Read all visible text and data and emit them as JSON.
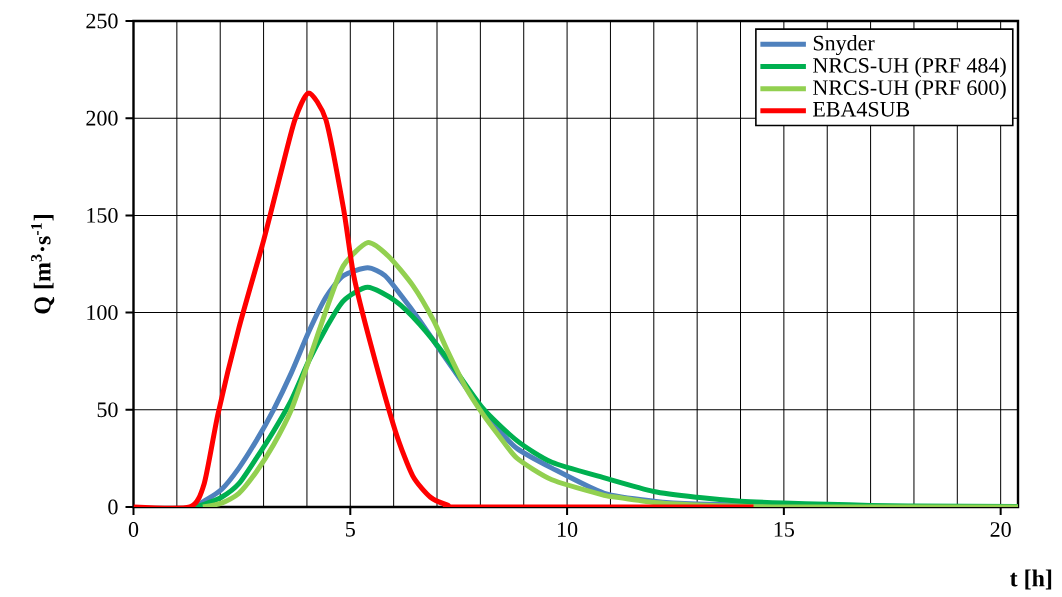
{
  "chart_data": {
    "type": "line",
    "xlabel": "t [h]",
    "ylabel": "Q [m$^{3}$·s$^{-1}$]",
    "xlim": [
      0,
      20.4
    ],
    "ylim": [
      0,
      250
    ],
    "xticks": [
      0,
      {
        "value": 1,
        "label": null
      },
      {
        "value": 2,
        "label": null
      },
      {
        "value": 3,
        "label": null
      },
      {
        "value": 4,
        "label": null
      },
      5,
      {
        "value": 6,
        "label": null
      },
      {
        "value": 7,
        "label": null
      },
      {
        "value": 8,
        "label": null
      },
      {
        "value": 9,
        "label": null
      },
      10,
      {
        "value": 11,
        "label": null
      },
      {
        "value": 12,
        "label": null
      },
      {
        "value": 13,
        "label": null
      },
      {
        "value": 14,
        "label": null
      },
      15,
      {
        "value": 16,
        "label": null
      },
      {
        "value": 17,
        "label": null
      },
      {
        "value": 18,
        "label": null
      },
      {
        "value": 19,
        "label": null
      },
      20
    ],
    "yticks": [
      0,
      50,
      100,
      150,
      200,
      250
    ],
    "grid": true,
    "legend": "top right",
    "marker": "none",
    "line_style": "solid",
    "series": [
      {
        "name": "Snyder",
        "color": "#4f81bd",
        "x": [
          1.4,
          1.63,
          2.03,
          2.43,
          2.83,
          3.23,
          3.64,
          4.04,
          4.44,
          4.84,
          5.4,
          5.8,
          6.2,
          6.6,
          7.09,
          7.65,
          8.05,
          8.45,
          8.85,
          9.65,
          10.86,
          12.0,
          13.0,
          15.0
        ],
        "values": [
          0,
          3,
          9,
          20,
          34,
          50,
          69,
          90,
          108,
          119,
          123,
          119,
          108,
          96,
          80,
          62,
          50,
          39,
          30,
          20,
          7,
          3,
          1.5,
          0.5
        ]
      },
      {
        "name": "NRCS-UH (PRF 484)",
        "color": "#00b050",
        "x": [
          1.4,
          1.63,
          2.03,
          2.43,
          2.83,
          3.23,
          3.64,
          4.04,
          4.44,
          4.84,
          5.4,
          6.04,
          6.6,
          7.25,
          8.05,
          8.85,
          9.65,
          10.86,
          12.0,
          13.0,
          14.0,
          15.0,
          16.0,
          17.0,
          18.0,
          20.4
        ],
        "values": [
          0,
          1.4,
          5,
          12,
          25,
          39,
          55,
          75,
          92,
          106,
          113,
          106,
          94,
          76,
          51,
          34,
          23,
          15,
          8,
          5,
          3,
          2,
          1.4,
          0.8,
          0.5,
          0.2
        ]
      },
      {
        "name": "NRCS-UH (PRF 600)",
        "color": "#92d050",
        "x": [
          1.6,
          2.03,
          2.43,
          2.83,
          3.23,
          3.64,
          4.04,
          4.44,
          4.84,
          5.4,
          5.88,
          6.44,
          6.92,
          7.25,
          7.65,
          8.05,
          8.45,
          8.85,
          9.65,
          10.86,
          11.15,
          12.0,
          13.0,
          14.0,
          15.0,
          20.4
        ],
        "values": [
          0,
          2,
          7,
          18,
          32,
          50,
          75,
          101,
          124,
          136,
          129,
          114,
          96,
          80,
          62,
          48,
          36,
          25,
          14,
          6,
          5,
          2.3,
          1,
          0.4,
          0,
          0
        ]
      },
      {
        "name": "EBA4SUB",
        "color": "#ff0000",
        "x": [
          0,
          1.3,
          1.63,
          1.95,
          2.43,
          3.0,
          3.4,
          3.72,
          4.04,
          4.44,
          4.84,
          5.08,
          5.48,
          6.04,
          6.44,
          6.85,
          7.25,
          7.65,
          14.3
        ],
        "values": [
          0,
          0,
          12,
          48,
          92,
          137,
          172,
          199,
          213,
          199,
          154,
          119,
          83,
          39,
          16,
          5,
          1,
          0,
          0
        ]
      }
    ]
  }
}
